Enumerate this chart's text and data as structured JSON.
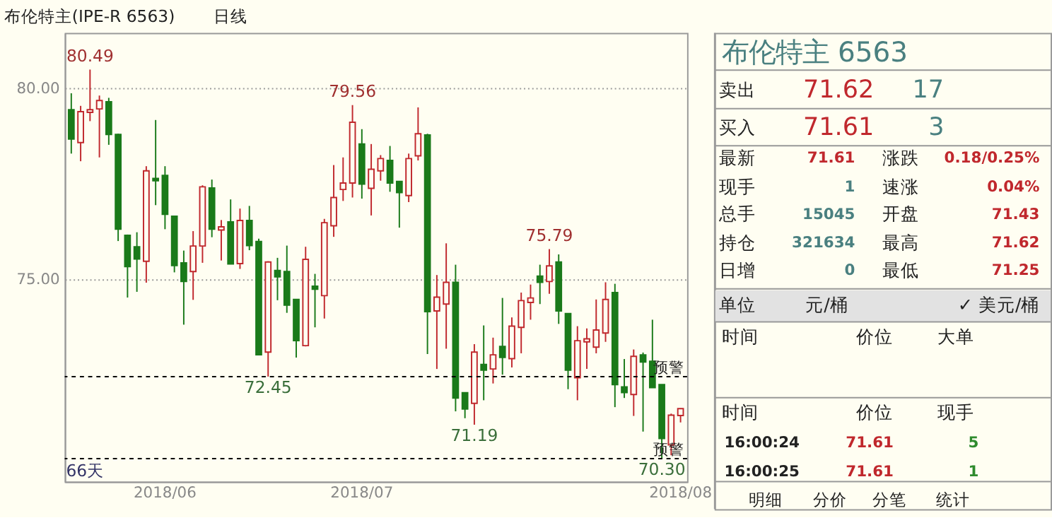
{
  "chart_data": [
    {
      "type": "candlestick",
      "title": "布伦特主(IPE-R 6563)",
      "subtitle": "日线",
      "categories": [
        null,
        null,
        null,
        null,
        null,
        null,
        null,
        null,
        null,
        null,
        "2018/06",
        null,
        null,
        null,
        null,
        null,
        null,
        null,
        null,
        null,
        null,
        null,
        null,
        null,
        null,
        null,
        null,
        null,
        null,
        null,
        null,
        "2018/07",
        null,
        null,
        null,
        null,
        null,
        null,
        null,
        null,
        null,
        null,
        null,
        null,
        null,
        null,
        null,
        null,
        null,
        null,
        null,
        null,
        null,
        null,
        null,
        null,
        null,
        null,
        null,
        null,
        null,
        null,
        null,
        null,
        null,
        "2018/08"
      ],
      "ohlc": [
        [
          79.44,
          79.87,
          78.29,
          78.67
        ],
        [
          78.58,
          79.54,
          78.09,
          79.39
        ],
        [
          79.37,
          80.49,
          79.14,
          79.44
        ],
        [
          79.46,
          79.81,
          78.19,
          79.68
        ],
        [
          79.65,
          79.75,
          78.52,
          78.79
        ],
        [
          78.79,
          78.81,
          76.0,
          76.31
        ],
        [
          76.15,
          76.17,
          74.52,
          75.33
        ],
        [
          75.85,
          76.23,
          74.67,
          75.53
        ],
        [
          75.47,
          77.96,
          74.91,
          77.84
        ],
        [
          77.64,
          79.17,
          76.94,
          77.58
        ],
        [
          77.72,
          77.96,
          76.31,
          76.7
        ],
        [
          76.65,
          76.65,
          75.18,
          75.36
        ],
        [
          75.43,
          75.75,
          73.81,
          74.94
        ],
        [
          75.2,
          76.26,
          74.46,
          75.87
        ],
        [
          75.87,
          77.46,
          75.43,
          77.42
        ],
        [
          77.39,
          77.61,
          76.1,
          76.31
        ],
        [
          76.29,
          76.55,
          75.49,
          76.37
        ],
        [
          76.5,
          77.09,
          75.39,
          75.4
        ],
        [
          75.41,
          76.85,
          75.27,
          76.54
        ],
        [
          76.54,
          76.92,
          75.76,
          75.88
        ],
        [
          75.99,
          76.06,
          73.02,
          73.02
        ],
        [
          73.09,
          75.47,
          72.45,
          75.45
        ],
        [
          75.23,
          75.56,
          74.45,
          75.06
        ],
        [
          75.2,
          75.88,
          74.12,
          74.32
        ],
        [
          74.47,
          74.47,
          72.95,
          73.39
        ],
        [
          73.26,
          75.85,
          73.24,
          75.52
        ],
        [
          74.82,
          75.14,
          73.74,
          74.74
        ],
        [
          74.57,
          76.58,
          73.97,
          76.48
        ],
        [
          76.4,
          77.99,
          76.11,
          77.14
        ],
        [
          77.35,
          78.19,
          77.05,
          77.52
        ],
        [
          77.52,
          79.56,
          77.14,
          79.11
        ],
        [
          78.54,
          78.93,
          77.11,
          77.49
        ],
        [
          77.38,
          78.54,
          76.67,
          77.88
        ],
        [
          77.84,
          78.25,
          77.58,
          78.16
        ],
        [
          78.11,
          78.49,
          77.29,
          77.52
        ],
        [
          77.56,
          77.56,
          76.35,
          77.27
        ],
        [
          77.19,
          78.29,
          77.02,
          78.16
        ],
        [
          78.23,
          79.5,
          78.11,
          78.81
        ],
        [
          78.78,
          78.81,
          73.04,
          74.15
        ],
        [
          74.17,
          75.11,
          72.65,
          74.53
        ],
        [
          74.35,
          75.94,
          73.18,
          74.92
        ],
        [
          74.92,
          75.38,
          71.54,
          71.89
        ],
        [
          72.03,
          72.03,
          71.36,
          71.6
        ],
        [
          71.75,
          73.3,
          71.19,
          73.09
        ],
        [
          72.77,
          73.79,
          71.83,
          72.62
        ],
        [
          72.65,
          73.47,
          72.27,
          73.02
        ],
        [
          73.24,
          74.51,
          72.5,
          72.95
        ],
        [
          72.92,
          74.0,
          72.69,
          73.77
        ],
        [
          73.74,
          74.65,
          73.06,
          74.44
        ],
        [
          74.39,
          74.86,
          73.94,
          74.51
        ],
        [
          75.08,
          75.38,
          74.35,
          74.92
        ],
        [
          74.94,
          75.79,
          74.62,
          75.35
        ],
        [
          75.45,
          75.65,
          73.83,
          74.17
        ],
        [
          74.1,
          74.1,
          72.12,
          72.62
        ],
        [
          72.42,
          73.77,
          71.83,
          73.39
        ],
        [
          73.36,
          73.71,
          72.65,
          73.44
        ],
        [
          73.22,
          74.47,
          73.06,
          73.67
        ],
        [
          73.59,
          74.92,
          73.36,
          74.47
        ],
        [
          74.65,
          74.88,
          71.65,
          72.24
        ],
        [
          72.18,
          72.91,
          71.89,
          72.03
        ],
        [
          71.98,
          73.16,
          71.42,
          72.98
        ],
        [
          73.02,
          73.08,
          71.01,
          72.83
        ],
        [
          72.85,
          73.94,
          72.16,
          72.16
        ],
        [
          72.24,
          72.24,
          70.3,
          70.83
        ],
        [
          70.66,
          71.48,
          70.39,
          71.44
        ],
        [
          71.43,
          71.62,
          71.25,
          71.61
        ]
      ],
      "colors": [
        "#1a7a1a",
        "#c0282d",
        "#c0282d",
        "#c0282d",
        "#1a7a1a",
        "#1a7a1a",
        "#1a7a1a",
        "#1a7a1a",
        "#c0282d",
        "#1a7a1a",
        "#1a7a1a",
        "#1a7a1a",
        "#1a7a1a",
        "#c0282d",
        "#c0282d",
        "#1a7a1a",
        "#c0282d",
        "#1a7a1a",
        "#c0282d",
        "#1a7a1a",
        "#1a7a1a",
        "#c0282d",
        "#1a7a1a",
        "#1a7a1a",
        "#1a7a1a",
        "#c0282d",
        "#1a7a1a",
        "#c0282d",
        "#c0282d",
        "#c0282d",
        "#c0282d",
        "#1a7a1a",
        "#c0282d",
        "#c0282d",
        "#1a7a1a",
        "#1a7a1a",
        "#c0282d",
        "#c0282d",
        "#1a7a1a",
        "#c0282d",
        "#c0282d",
        "#1a7a1a",
        "#1a7a1a",
        "#c0282d",
        "#1a7a1a",
        "#c0282d",
        "#1a7a1a",
        "#c0282d",
        "#c0282d",
        "#c0282d",
        "#1a7a1a",
        "#c0282d",
        "#1a7a1a",
        "#1a7a1a",
        "#c0282d",
        "#c0282d",
        "#c0282d",
        "#c0282d",
        "#1a7a1a",
        "#1a7a1a",
        "#c0282d",
        "#1a7a1a",
        "#1a7a1a",
        "#1a7a1a",
        "#c0282d",
        "#c0282d"
      ],
      "ylim": [
        69.7,
        81.45
      ],
      "yticks": [
        {
          "value": 75,
          "label": "75.00"
        },
        {
          "value": 80,
          "label": "80.00"
        }
      ],
      "grid": "y",
      "ref_lines": [
        {
          "axis": "y",
          "value": 72.45,
          "label": "预警",
          "color": "#000000",
          "line_style": "dashed"
        },
        {
          "axis": "y",
          "value": 70.3,
          "label": "预警",
          "color": "#000000",
          "line_style": "dashed"
        }
      ],
      "annotations": [
        {
          "text": "80.49",
          "y": 80.49
        },
        {
          "text": "79.56",
          "y": 79.56
        },
        {
          "text": "75.79",
          "y": 75.79
        },
        {
          "text": "72.45",
          "y": 72.45
        },
        {
          "text": "71.19",
          "y": 71.19
        },
        {
          "text": "70.30",
          "y": 70.3
        },
        "66天"
      ]
    },
    {
      "type": "other",
      "title": "布伦特主 6563",
      "annotations": [
        "卖出",
        "71.62",
        "17",
        "买入",
        "71.61",
        "3",
        "最新",
        "71.61",
        "涨跌",
        "0.18/0.25%",
        "现手",
        "1",
        "速涨",
        "0.04%",
        "总手",
        "15045",
        "开盘",
        "71.43",
        "持仓",
        "321634",
        "最高",
        "71.62",
        "日增",
        "0",
        "最低",
        "71.25",
        "单位",
        "元/桶",
        "✓ 美元/桶",
        "时间",
        "价位",
        "大单",
        "时间",
        "价位",
        "现手",
        "16:00:24",
        "71.61",
        "5",
        "16:00:25",
        "71.61",
        "1",
        "明细",
        "分价",
        "分笔",
        "统计"
      ]
    }
  ]
}
